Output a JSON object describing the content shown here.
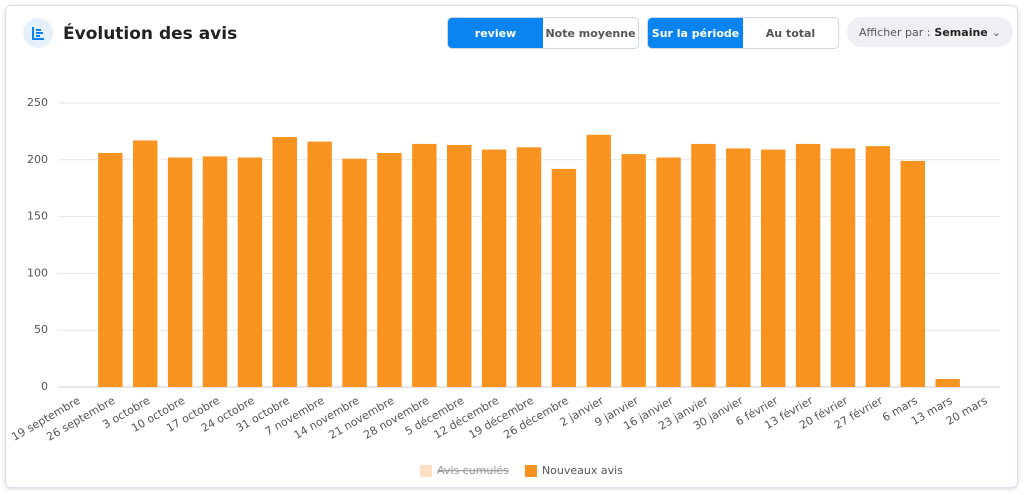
{
  "header": {
    "title": "Évolution des avis",
    "metric_buttons": [
      "review",
      "Note moyenne"
    ],
    "scope_buttons": [
      "Sur la période",
      "Au total"
    ],
    "group_label": "Afficher par :",
    "group_value": "Semaine"
  },
  "chart_data": {
    "type": "bar",
    "categories": [
      "19 septembre",
      "26 septembre",
      "3 octobre",
      "10 octobre",
      "17 octobre",
      "24 octobre",
      "31 octobre",
      "7 novembre",
      "14 novembre",
      "21 novembre",
      "28 novembre",
      "5 décembre",
      "12 décembre",
      "19 décembre",
      "26 décembre",
      "2 janvier",
      "9 janvier",
      "16 janvier",
      "23 janvier",
      "30 janvier",
      "6 février",
      "13 février",
      "20 février",
      "27 février",
      "6 mars",
      "13 mars",
      "20 mars"
    ],
    "series": [
      {
        "name": "Nouveaux avis",
        "color": "#f7931e",
        "values": [
          null,
          206,
          217,
          202,
          203,
          202,
          220,
          216,
          201,
          206,
          214,
          213,
          209,
          211,
          192,
          222,
          205,
          202,
          214,
          210,
          209,
          214,
          210,
          212,
          199,
          7,
          null
        ]
      }
    ],
    "hidden_series": [
      {
        "name": "Avis cumulés",
        "color": "#fde0c4"
      }
    ],
    "ylim": [
      0,
      250
    ],
    "yticks": [
      0,
      50,
      100,
      150,
      200,
      250
    ],
    "grid": true
  }
}
